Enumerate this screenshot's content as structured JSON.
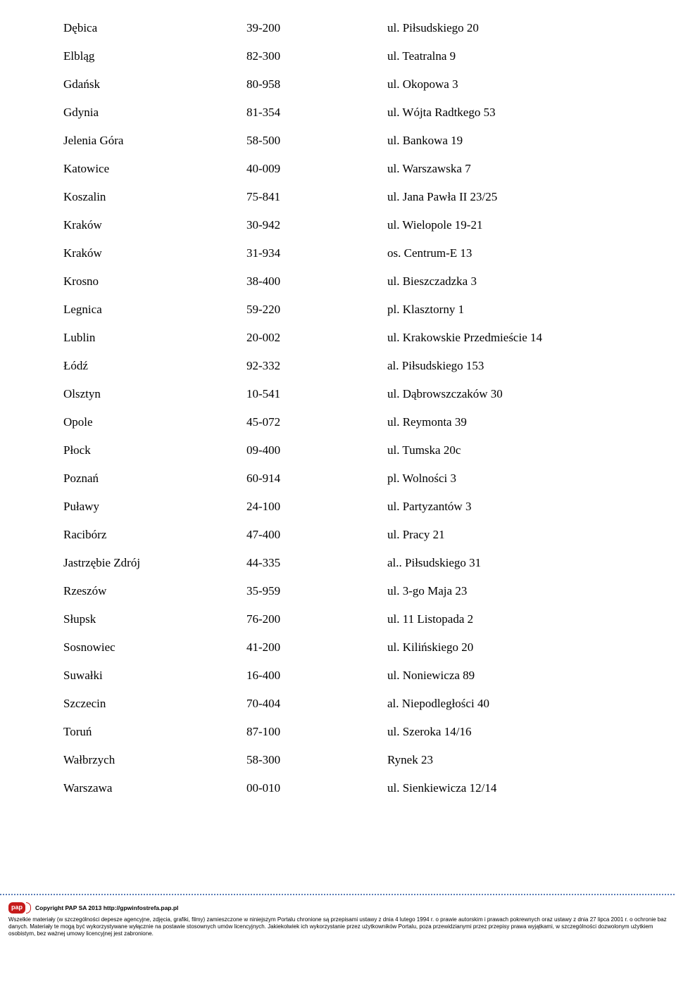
{
  "text_color": "#000000",
  "background_color": "#ffffff",
  "font_family": "Times New Roman",
  "font_size_pt": 12,
  "divider_color": "#5a7db8",
  "logo_bg": "#c61a1a",
  "logo_text": "pap",
  "table": {
    "columns": [
      "city",
      "postal_code",
      "address"
    ],
    "rows": [
      [
        "Dębica",
        "39-200",
        "ul. Piłsudskiego 20"
      ],
      [
        "Elbląg",
        "82-300",
        "ul. Teatralna 9"
      ],
      [
        "Gdańsk",
        "80-958",
        "ul. Okopowa 3"
      ],
      [
        "Gdynia",
        "81-354",
        "ul. Wójta Radtkego 53"
      ],
      [
        "Jelenia Góra",
        "58-500",
        "ul. Bankowa 19"
      ],
      [
        "Katowice",
        "40-009",
        "ul. Warszawska 7"
      ],
      [
        "Koszalin",
        "75-841",
        "ul. Jana Pawła II 23/25"
      ],
      [
        "Kraków",
        "30-942",
        "ul. Wielopole 19-21"
      ],
      [
        "Kraków",
        "31-934",
        "os. Centrum-E 13"
      ],
      [
        "Krosno",
        "38-400",
        "ul. Bieszczadzka 3"
      ],
      [
        "Legnica",
        "59-220",
        "pl. Klasztorny 1"
      ],
      [
        "Lublin",
        "20-002",
        "ul. Krakowskie Przedmieście 14"
      ],
      [
        "Łódź",
        "92-332",
        "al. Piłsudskiego 153"
      ],
      [
        "Olsztyn",
        "10-541",
        "ul. Dąbrowszczaków 30"
      ],
      [
        "Opole",
        "45-072",
        "ul. Reymonta 39"
      ],
      [
        "Płock",
        "09-400",
        "ul. Tumska 20c"
      ],
      [
        "Poznań",
        "60-914",
        "pl. Wolności 3"
      ],
      [
        "Puławy",
        "24-100",
        "ul. Partyzantów 3"
      ],
      [
        "Racibórz",
        "47-400",
        "ul. Pracy 21"
      ],
      [
        "Jastrzębie Zdrój",
        "44-335",
        "al.. Piłsudskiego 31"
      ],
      [
        "Rzeszów",
        "35-959",
        "ul. 3-go Maja 23"
      ],
      [
        "Słupsk",
        "76-200",
        "ul. 11 Listopada 2"
      ],
      [
        "Sosnowiec",
        "41-200",
        "ul. Kilińskiego 20"
      ],
      [
        "Suwałki",
        "16-400",
        "ul. Noniewicza 89"
      ],
      [
        "Szczecin",
        "70-404",
        "al. Niepodległości 40"
      ],
      [
        "Toruń",
        "87-100",
        "ul. Szeroka 14/16"
      ],
      [
        "Wałbrzych",
        "58-300",
        "Rynek 23"
      ],
      [
        "Warszawa",
        "00-010",
        "ul. Sienkiewicza 12/14"
      ]
    ]
  },
  "footer": {
    "copyright": "Copyright PAP SA 2013 http://gpwinfostrefa.pap.pl",
    "legal": "Wszelkie materiały (w szczególności depesze agencyjne, zdjęcia, grafiki, filmy) zamieszczone w niniejszym Portalu chronione są przepisami ustawy z dnia 4 lutego 1994 r. o prawie autorskim i prawach pokrewnych oraz ustawy z dnia 27 lipca 2001 r. o ochronie baz danych. Materiały te mogą być wykorzystywane wyłącznie na postawie stosownych umów licencyjnych. Jakiekolwiek ich wykorzystanie przez użytkowników Portalu, poza przewidzianymi przez przepisy prawa wyjątkami, w szczególności dozwolonym użytkiem osobistym, bez ważnej umowy licencyjnej jest zabronione."
  }
}
